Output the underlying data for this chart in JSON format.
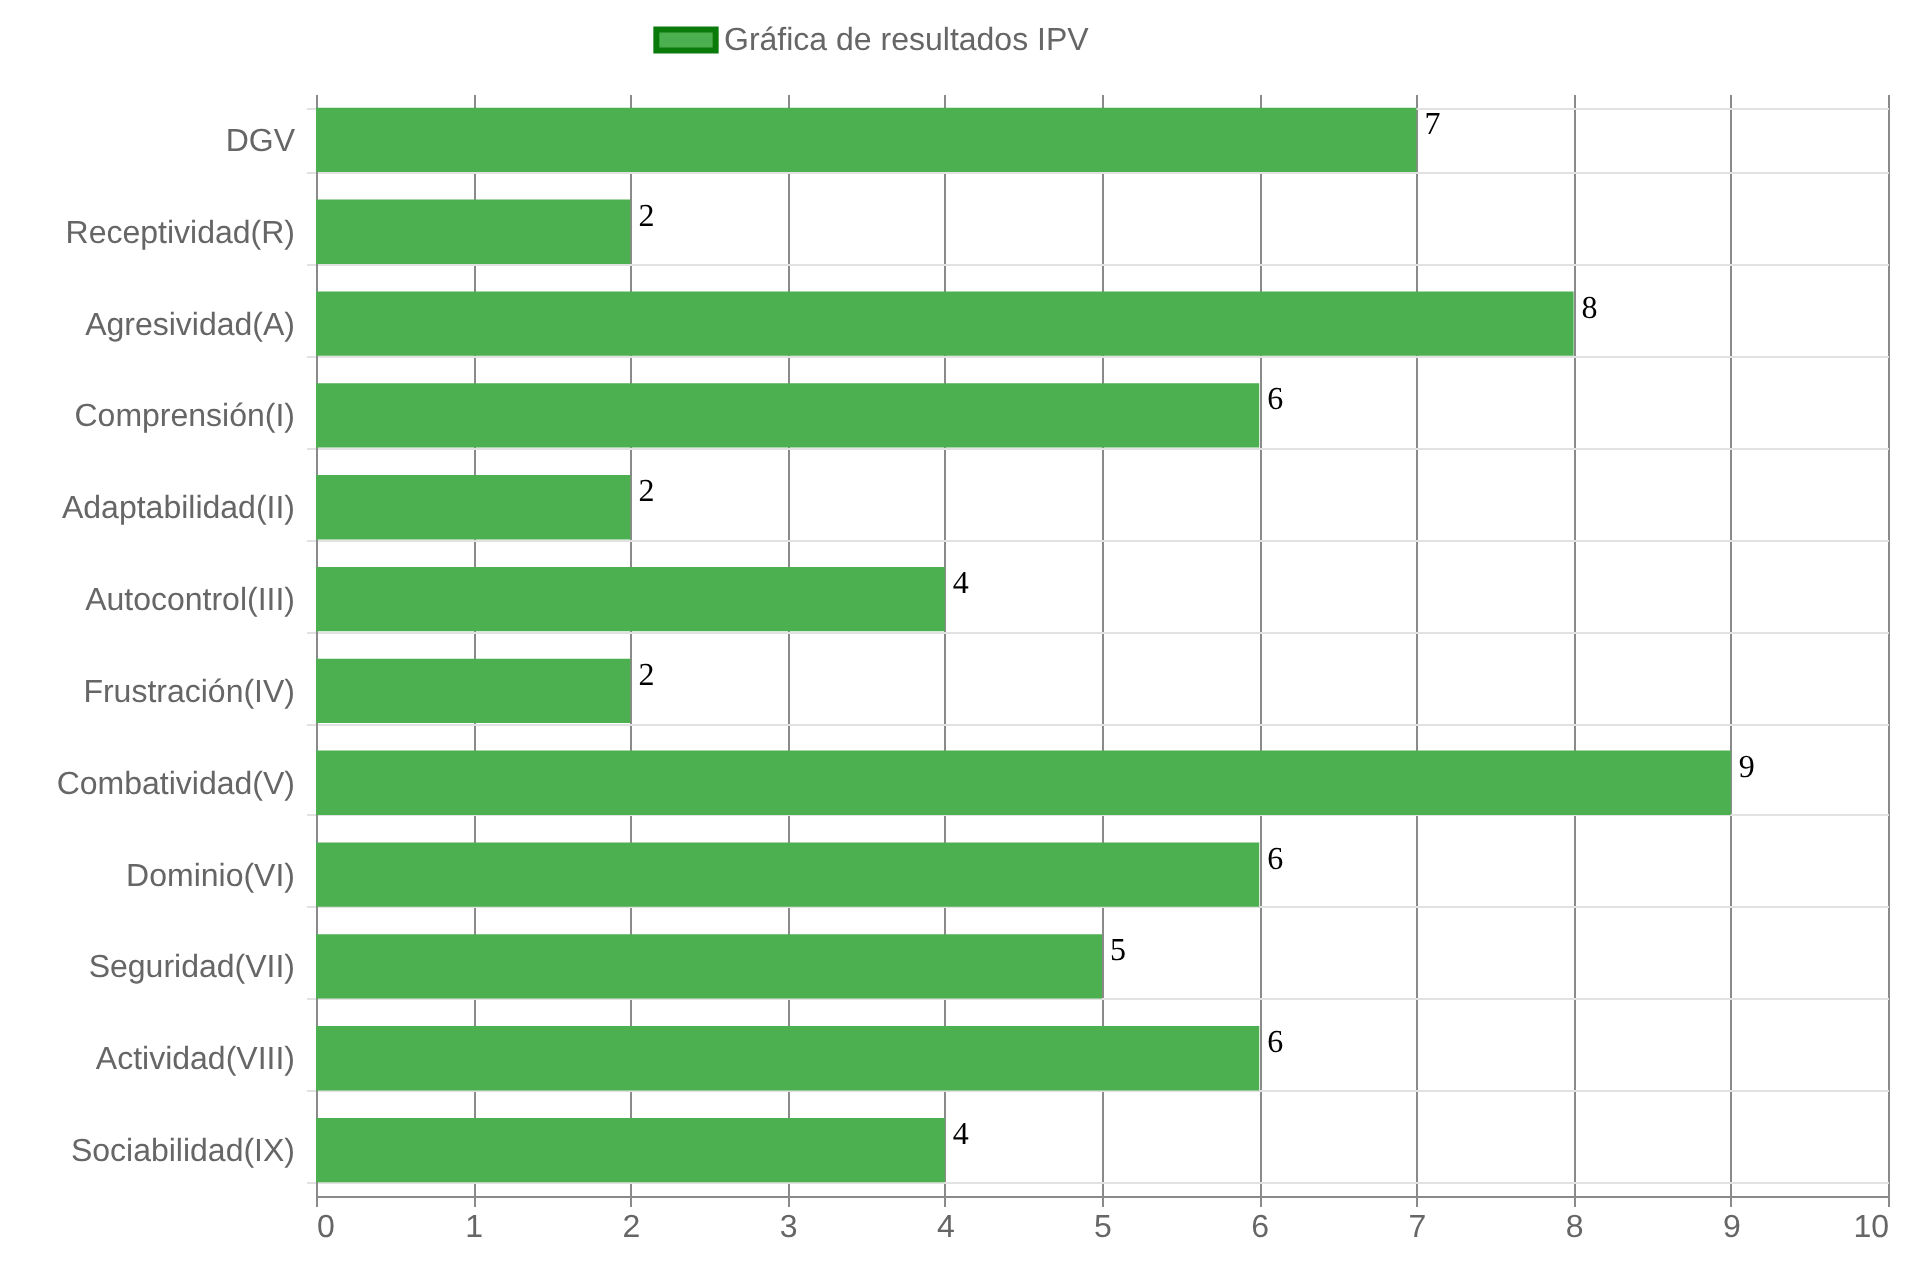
{
  "chart_data": {
    "type": "bar",
    "orientation": "horizontal",
    "categories": [
      "DGV",
      "Receptividad(R)",
      "Agresividad(A)",
      "Comprensión(I)",
      "Adaptabilidad(II)",
      "Autocontrol(III)",
      "Frustración(IV)",
      "Combatividad(V)",
      "Dominio(VI)",
      "Seguridad(VII)",
      "Actividad(VIII)",
      "Sociabilidad(IX)"
    ],
    "series": [
      {
        "name": "Gráfica de resultados IPV",
        "color": "#4caf50",
        "values": [
          7,
          2,
          8,
          6,
          2,
          4,
          2,
          9,
          6,
          5,
          6,
          4
        ]
      }
    ],
    "xlim": [
      0,
      10
    ],
    "xticks": [
      0,
      1,
      2,
      3,
      4,
      5,
      6,
      7,
      8,
      9,
      10
    ],
    "grid": true,
    "legend": "top",
    "data_labels": true
  }
}
